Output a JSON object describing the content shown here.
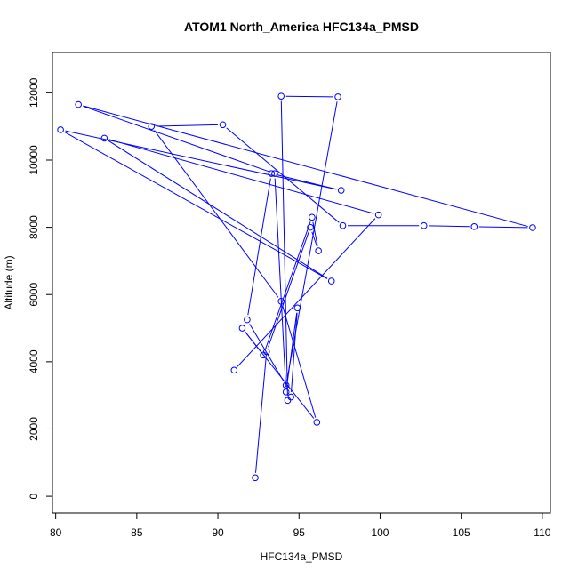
{
  "chart_data": {
    "type": "line",
    "title": "ATOM1 North_America HFC134a_PMSD",
    "xlabel": "HFC134a_PMSD",
    "ylabel": "Altitude (m)",
    "xlim": [
      79.8,
      110.5
    ],
    "ylim": [
      -500,
      13200
    ],
    "x_ticks": [
      80,
      85,
      90,
      95,
      100,
      105,
      110
    ],
    "y_ticks": [
      0,
      2000,
      4000,
      6000,
      8000,
      10000,
      12000
    ],
    "grid": false,
    "marker": "open-circle",
    "series": [
      {
        "color": "#0000ff",
        "points": [
          {
            "x": 92.3,
            "y": 550
          },
          {
            "x": 93.0,
            "y": 4300
          },
          {
            "x": 95.7,
            "y": 8000
          },
          {
            "x": 96.2,
            "y": 7300
          },
          {
            "x": 95.8,
            "y": 8300
          },
          {
            "x": 92.8,
            "y": 4200
          },
          {
            "x": 91.5,
            "y": 5000
          },
          {
            "x": 96.1,
            "y": 2200
          },
          {
            "x": 93.9,
            "y": 5800
          },
          {
            "x": 85.9,
            "y": 11000
          },
          {
            "x": 90.3,
            "y": 11050
          },
          {
            "x": 97.7,
            "y": 8050
          },
          {
            "x": 102.7,
            "y": 8050
          },
          {
            "x": 105.8,
            "y": 8020
          },
          {
            "x": 109.4,
            "y": 7990
          },
          {
            "x": 81.4,
            "y": 11650
          },
          {
            "x": 93.5,
            "y": 9600
          },
          {
            "x": 94.2,
            "y": 3100
          },
          {
            "x": 94.9,
            "y": 5600
          },
          {
            "x": 94.5,
            "y": 2950
          },
          {
            "x": 94.3,
            "y": 2850
          },
          {
            "x": 93.9,
            "y": 11900
          },
          {
            "x": 97.4,
            "y": 11880
          },
          {
            "x": 94.2,
            "y": 3300
          },
          {
            "x": 91.8,
            "y": 5250
          },
          {
            "x": 93.3,
            "y": 9600
          },
          {
            "x": 97.6,
            "y": 9100
          },
          {
            "x": 80.3,
            "y": 10900
          },
          {
            "x": 97.0,
            "y": 6400
          },
          {
            "x": 83.0,
            "y": 10650
          },
          {
            "x": 99.9,
            "y": 8370
          },
          {
            "x": 91.0,
            "y": 3750
          }
        ]
      }
    ]
  }
}
